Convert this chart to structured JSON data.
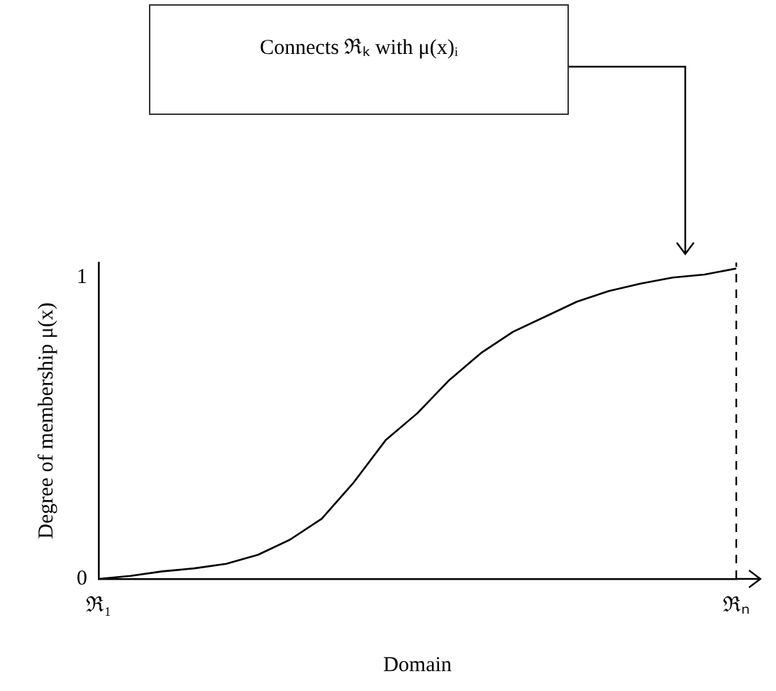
{
  "chart_data": {
    "type": "line",
    "xlabel": "Domain",
    "ylabel": "Degree of membership μ(x)",
    "annotations": [
      "Connects ℜₖ with μ(x)ᵢ"
    ],
    "categories": [
      "ℜ₁",
      null,
      null,
      null,
      null,
      null,
      null,
      null,
      null,
      null,
      null,
      null,
      null,
      null,
      null,
      null,
      null,
      null,
      null,
      null,
      "ℜₙ"
    ],
    "ylim": [
      0,
      1.05
    ],
    "yticks": [
      0,
      1
    ],
    "ref_lines": [
      {
        "axis": "x",
        "value": "ℜₙ",
        "color": "#000000",
        "line_style": "dashed"
      }
    ],
    "grid": false,
    "legend": false,
    "marker": "none",
    "line_style": "solid",
    "series": [
      {
        "color": "#000000",
        "values": [
          0,
          0.01,
          0.025,
          0.035,
          0.05,
          0.08,
          0.13,
          0.2,
          0.32,
          0.46,
          0.55,
          0.66,
          0.75,
          0.82,
          0.87,
          0.92,
          0.955,
          0.98,
          1.0,
          1.01,
          1.03
        ]
      }
    ]
  }
}
